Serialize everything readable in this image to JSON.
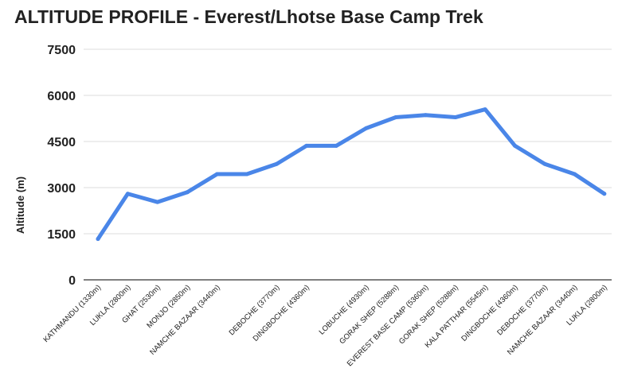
{
  "chart_data": {
    "type": "line",
    "title": "ALTITUDE PROFILE - Everest/Lhotse Base Camp Trek",
    "xlabel": "",
    "ylabel": "Altitude (m)",
    "ylim": [
      0,
      7500
    ],
    "yticks": [
      0,
      1500,
      3000,
      4500,
      6000,
      7500
    ],
    "grid": true,
    "legend": "none",
    "line_color": "#4a86e8",
    "categories": [
      "KATHMANDU (1330m)",
      "LUKLA (2800m)",
      "GHAT (2530m)",
      "MONJO (2850m)",
      "NAMCHE BAZAAR (3440m)",
      "",
      "DEBOCHE (3770m)",
      "DINGBOCHE (4360m)",
      "",
      "LOBUCHE (4930m)",
      "GORAK SHEP (5288m)",
      "EVEREST BASE CAMP (5360m)",
      "GORAK SHEP (5288m)",
      "KALA PATTHAR (5545m)",
      "DINGBOCHE (4360m)",
      "DEBOCHE (3770m)",
      "NAMCHE BAZAAR (3440m)",
      "LUKLA (2800m)"
    ],
    "series": [
      {
        "values": [
          1330,
          2800,
          2530,
          2850,
          3440,
          3440,
          3770,
          4360,
          4360,
          4930,
          5288,
          5360,
          5288,
          5545,
          4360,
          3770,
          3440,
          2800
        ]
      }
    ]
  }
}
